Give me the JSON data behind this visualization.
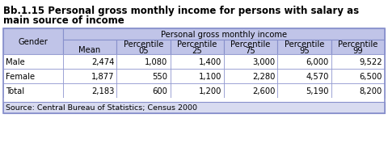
{
  "title_line1": "Bb.1.15 Personal gross monthly income for persons with salary as",
  "title_line2": "main source of income",
  "header_top": "Personal gross monthly income",
  "col_headers_row1": [
    "",
    "",
    "Percentile",
    "Percentile",
    "Percentile",
    "Percentile",
    "Percentile"
  ],
  "col_headers_row2": [
    "Gender",
    "Mean",
    "05",
    "25",
    "75",
    "95",
    "99"
  ],
  "rows": [
    [
      "Male",
      "2,474",
      "1,080",
      "1,400",
      "3,000",
      "6,000",
      "9,522"
    ],
    [
      "Female",
      "1,877",
      "550",
      "1,100",
      "2,280",
      "4,570",
      "6,500"
    ],
    [
      "Total",
      "2,183",
      "600",
      "1,200",
      "2,600",
      "5,190",
      "8,200"
    ]
  ],
  "source": "Source: Central Bureau of Statistics; Census 2000",
  "header_bg": "#c0c4e8",
  "row_bg_odd": "#ffffff",
  "row_bg_even": "#ffffff",
  "source_bg": "#d8dbf0",
  "border_color": "#8890cc",
  "title_fontsize": 8.5,
  "table_fontsize": 7.2,
  "source_fontsize": 6.8
}
